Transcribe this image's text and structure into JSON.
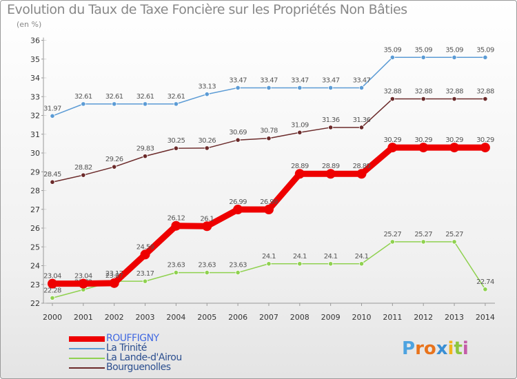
{
  "title": "Evolution du Taux de Taxe Foncière sur les Propriétés Non Bâties",
  "subtitle": "(en %)",
  "logo": {
    "text": "Proxiti"
  },
  "chart_data": {
    "type": "line",
    "title": "Evolution du Taux de Taxe Foncière sur les Propriétés Non Bâties",
    "ylabel": "(en %)",
    "xlabel": "",
    "ylim": [
      22,
      36
    ],
    "yticks": [
      22,
      23,
      24,
      25,
      26,
      27,
      28,
      29,
      30,
      31,
      32,
      33,
      34,
      35,
      36
    ],
    "x": [
      "2000",
      "2001",
      "2002",
      "2003",
      "2004",
      "2005",
      "2006",
      "2007",
      "2008",
      "2009",
      "2010",
      "2011",
      "2012",
      "2013",
      "2014"
    ],
    "series": [
      {
        "name": "La Trinité",
        "color": "#5b9bd5",
        "values": [
          31.97,
          32.61,
          32.61,
          32.61,
          32.61,
          33.13,
          33.47,
          33.47,
          33.47,
          33.47,
          33.47,
          35.09,
          35.09,
          35.09,
          35.09
        ],
        "labels": [
          "31.97",
          "32.61",
          "32.61",
          "32.61",
          "32.61",
          "33.13",
          "33.47",
          "33.47",
          "33.47",
          "33.47",
          "33.47",
          "35.09",
          "35.09",
          "35.09",
          "35.09"
        ]
      },
      {
        "name": "Bourguenolles",
        "color": "#6b2a2a",
        "values": [
          28.45,
          28.82,
          29.26,
          29.83,
          30.25,
          30.26,
          30.69,
          30.78,
          31.09,
          31.36,
          31.36,
          32.88,
          32.88,
          32.88,
          32.88
        ],
        "labels": [
          "28.45",
          "28.82",
          "29.26",
          "29.83",
          "30.25",
          "30.26",
          "30.69",
          "30.78",
          "31.09",
          "31.36",
          "31.36",
          "32.88",
          "32.88",
          "32.88",
          "32.88"
        ]
      },
      {
        "name": "ROUFFIGNY",
        "color": "#ee0000",
        "values": [
          23.04,
          23.04,
          23.07,
          24.59,
          26.12,
          26.1,
          26.99,
          26.99,
          28.89,
          28.89,
          28.89,
          30.29,
          30.29,
          30.29,
          30.29
        ],
        "labels": [
          "23.04",
          "23.04",
          "23.07",
          "24.59",
          "26.12",
          "26.1",
          "26.99",
          "26.99",
          "28.89",
          "28.89",
          "28.89",
          "30.29",
          "30.29",
          "30.29",
          "30.29"
        ]
      },
      {
        "name": "La Lande-d'Airou",
        "color": "#8fd14f",
        "values": [
          22.28,
          22.72,
          23.17,
          23.17,
          23.63,
          23.63,
          23.63,
          24.1,
          24.1,
          24.1,
          24.1,
          25.27,
          25.27,
          25.27,
          22.74
        ],
        "labels": [
          "22.28",
          "22.72",
          "23.17",
          "23.17",
          "23.63",
          "23.63",
          "23.63",
          "24.1",
          "24.1",
          "24.1",
          "24.1",
          "25.27",
          "25.27",
          "25.27",
          "22.74"
        ]
      }
    ],
    "legend": {
      "position": "bottom-left",
      "entries": [
        "ROUFFIGNY",
        "La Trinité",
        "La Lande-d'Airou",
        "Bourguenolles"
      ]
    },
    "grid": false
  }
}
